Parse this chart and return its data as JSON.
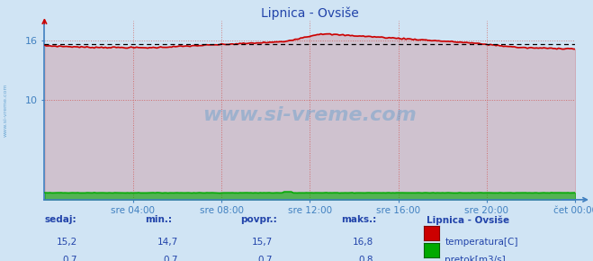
{
  "title": "Lipnica - Ovsiše",
  "bg_color": "#d0e4f4",
  "plot_bg_color": "#d0e4f4",
  "grid_color_v": "#d08080",
  "grid_color_h": "#d08080",
  "axis_color": "#4080c0",
  "title_color": "#2244aa",
  "tick_label_color": "#2244aa",
  "xlim": [
    0,
    288
  ],
  "ylim": [
    0,
    18
  ],
  "yticks": [
    10,
    16
  ],
  "xtick_labels": [
    "sre 04:00",
    "sre 08:00",
    "sre 12:00",
    "sre 16:00",
    "sre 20:00",
    "čet 00:00"
  ],
  "xtick_positions": [
    48,
    96,
    144,
    192,
    240,
    288
  ],
  "temp_avg": 15.7,
  "temp_color": "#cc0000",
  "avg_line_color": "#000000",
  "flow_color": "#00aa00",
  "watermark": "www.si-vreme.com",
  "legend_station": "Lipnica - Ovsiše",
  "stats_headers": [
    "sedaj:",
    "min.:",
    "povpr.:",
    "maks.:"
  ],
  "stats_temp": [
    "15,2",
    "14,7",
    "15,7",
    "16,8"
  ],
  "stats_flow": [
    "0,7",
    "0,7",
    "0,7",
    "0,8"
  ],
  "legend_temp_label": "temperatura[C]",
  "legend_flow_label": "pretok[m3/s]",
  "legend_temp_color": "#cc0000",
  "legend_flow_color": "#00aa00"
}
